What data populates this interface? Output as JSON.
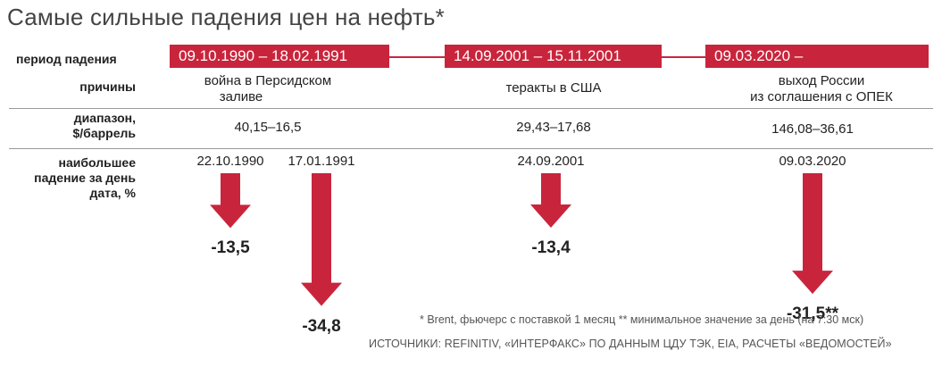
{
  "title": "Самые сильные падения цен на нефть*",
  "row_labels": {
    "period": "период падения",
    "causes": "причины",
    "range_line1": "диапазон,",
    "range_line2": "$/баррель",
    "drop_line1": "наибольшее",
    "drop_line2": "падение за день",
    "drop_line3": "дата, %"
  },
  "periods": [
    {
      "label": "09.10.1990 – 18.02.1991",
      "cause_line1": "война в Персидском",
      "cause_line2": "заливе",
      "range": "40,15–16,5"
    },
    {
      "label": "14.09.2001 – 15.11.2001",
      "cause_line1": "теракты в США",
      "cause_line2": "",
      "range": "29,43–17,68"
    },
    {
      "label": "09.03.2020 –",
      "cause_line1": "выход России",
      "cause_line2": "из соглашения с ОПЕК",
      "range": "146,08–36,61"
    }
  ],
  "chart_data": {
    "type": "bar",
    "title": "Самые сильные падения цен на нефть*",
    "categories": [
      "22.10.1990",
      "17.01.1991",
      "24.09.2001",
      "09.03.2020"
    ],
    "values": [
      -13.5,
      -34.8,
      -13.4,
      -31.5
    ],
    "value_labels": [
      "-13,5",
      "-34,8",
      "-13,4",
      "-31,5**"
    ],
    "color": "#c8253c"
  },
  "footnote": "* Brent, фьючерс с поставкой 1 месяц   ** минимальное значение за день (на 7:30 мск)",
  "source": "ИСТОЧНИКИ: REFINITIV, «ИНТЕРФАКС» ПО ДАННЫМ ЦДУ ТЭК, EIA, РАСЧЕТЫ «ВЕДОМОСТЕЙ»",
  "colors": {
    "accent": "#c8253c",
    "rule": "#9a9a9a"
  }
}
